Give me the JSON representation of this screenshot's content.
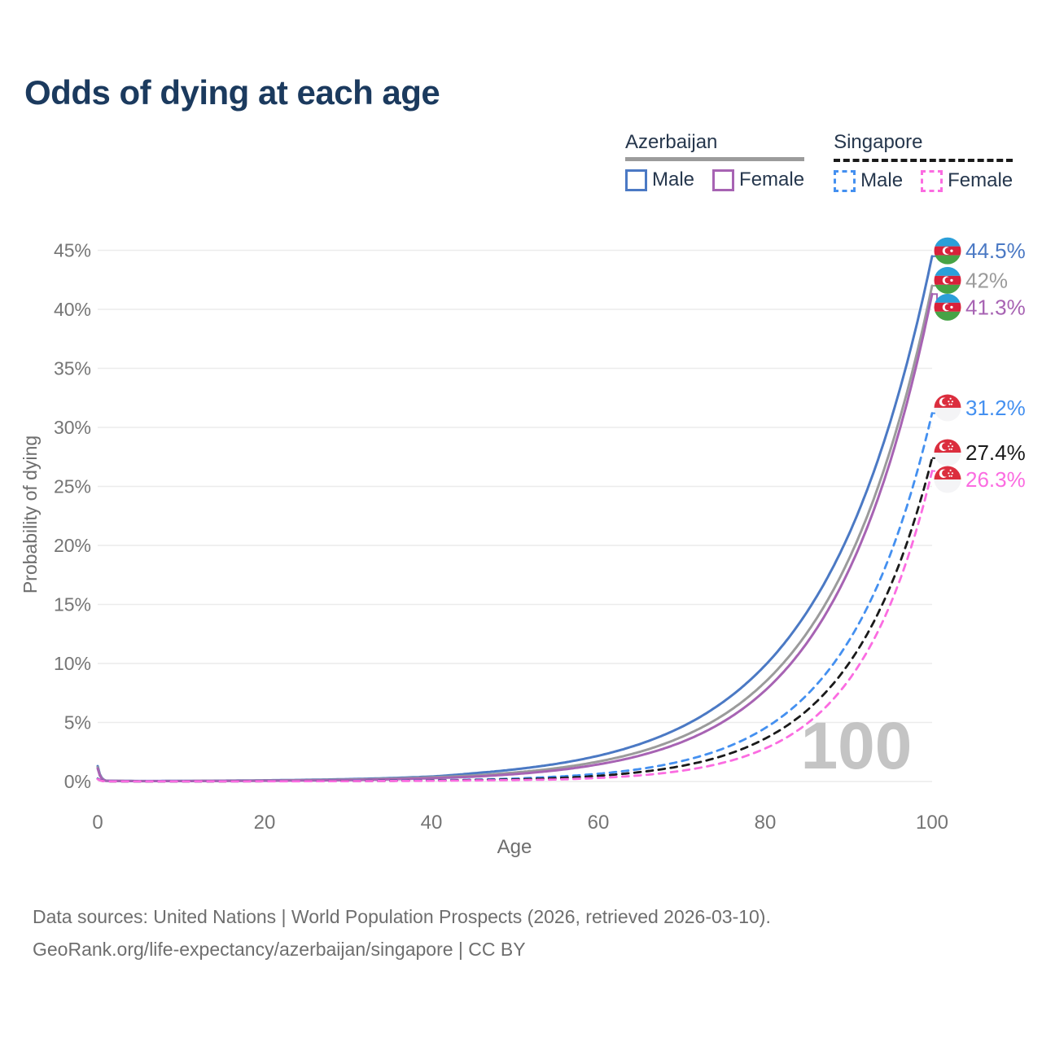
{
  "header": {
    "title": "Odds of dying at each age"
  },
  "legend": {
    "groups": [
      {
        "country": "Azerbaijan",
        "line_style": "solid",
        "color": "#9b9b9b",
        "items": [
          {
            "label": "Male",
            "color": "#4b79c4",
            "dash": false
          },
          {
            "label": "Female",
            "color": "#a763b3",
            "dash": false
          }
        ]
      },
      {
        "country": "Singapore",
        "line_style": "dashed",
        "color": "#1a1a1a",
        "items": [
          {
            "label": "Male",
            "color": "#4490f0",
            "dash": true
          },
          {
            "label": "Female",
            "color": "#fb6ce1",
            "dash": true
          }
        ]
      }
    ]
  },
  "chart_data": {
    "type": "line",
    "title": "Odds of dying at each age",
    "xlabel": "Age",
    "ylabel": "Probability of dying",
    "xlim": [
      0,
      100
    ],
    "ylim": [
      0,
      45
    ],
    "x_ticks": [
      0,
      20,
      40,
      60,
      80,
      100
    ],
    "y_ticks": [
      0,
      5,
      10,
      15,
      20,
      25,
      30,
      35,
      40,
      45
    ],
    "y_tick_suffix": "%",
    "grid": "horizontal",
    "hover_age_label": "100",
    "legend_position": "top-right",
    "ages": [
      0,
      1,
      5,
      10,
      20,
      30,
      40,
      45,
      50,
      55,
      60,
      65,
      70,
      75,
      80,
      85,
      90,
      95,
      100
    ],
    "series": [
      {
        "name": "Azerbaijan Male",
        "country": "Azerbaijan",
        "sex": "Male",
        "color": "#4b79c4",
        "dash": false,
        "end_label": "44.5%",
        "end_value": 44.5,
        "values": [
          1.3,
          0.07,
          0.04,
          0.05,
          0.1,
          0.2,
          0.42,
          0.7,
          1.03,
          1.5,
          2.18,
          3.18,
          4.63,
          6.76,
          9.85,
          14.36,
          20.9,
          30.5,
          44.5
        ]
      },
      {
        "name": "Azerbaijan Both sexes",
        "country": "Azerbaijan",
        "sex": "Both sexes",
        "color": "#9b9b9b",
        "dash": false,
        "end_label": "42%",
        "end_value": 42,
        "values": [
          1.2,
          0.06,
          0.035,
          0.04,
          0.08,
          0.16,
          0.35,
          0.51,
          0.76,
          1.13,
          1.69,
          2.52,
          3.78,
          5.64,
          8.43,
          12.59,
          18.8,
          28.1,
          42.0
        ]
      },
      {
        "name": "Azerbaijan Female",
        "country": "Azerbaijan",
        "sex": "Female",
        "color": "#a763b3",
        "dash": false,
        "end_label": "41.3%",
        "end_value": 41.3,
        "values": [
          1.1,
          0.05,
          0.03,
          0.035,
          0.06,
          0.12,
          0.28,
          0.41,
          0.63,
          0.95,
          1.45,
          2.2,
          3.34,
          5.08,
          7.72,
          11.75,
          17.87,
          27.16,
          41.3
        ]
      },
      {
        "name": "Singapore Male",
        "country": "Singapore",
        "sex": "Male",
        "color": "#4490f0",
        "dash": true,
        "end_label": "31.2%",
        "end_value": 31.2,
        "values": [
          0.25,
          0.02,
          0.012,
          0.012,
          0.03,
          0.05,
          0.1,
          0.155,
          0.25,
          0.41,
          0.66,
          1.06,
          1.73,
          2.8,
          4.53,
          7.34,
          11.89,
          19.26,
          31.2
        ]
      },
      {
        "name": "Singapore Both sexes",
        "country": "Singapore",
        "sex": "Both sexes",
        "color": "#1a1a1a",
        "dash": true,
        "end_label": "27.4%",
        "end_value": 27.4,
        "values": [
          0.22,
          0.018,
          0.01,
          0.01,
          0.025,
          0.04,
          0.08,
          0.12,
          0.175,
          0.29,
          0.48,
          0.8,
          1.32,
          2.19,
          3.64,
          6.02,
          9.98,
          16.54,
          27.4
        ]
      },
      {
        "name": "Singapore Female",
        "country": "Singapore",
        "sex": "Female",
        "color": "#fb6ce1",
        "dash": true,
        "end_label": "26.3%",
        "end_value": 26.3,
        "values": [
          0.2,
          0.015,
          0.009,
          0.009,
          0.02,
          0.03,
          0.06,
          0.09,
          0.12,
          0.17,
          0.3,
          0.52,
          0.91,
          1.6,
          2.8,
          4.9,
          8.58,
          15.02,
          26.3
        ]
      }
    ],
    "flags": {
      "Azerbaijan": {
        "blue": "#2b9fd9",
        "red": "#d8213a",
        "green": "#46a346",
        "emblem": "#ffffff"
      },
      "Singapore": {
        "red": "#db2e3e",
        "white": "#f4f4f6",
        "emblem": "#ffffff"
      }
    },
    "colors": {
      "grid": "#ececec",
      "tick_text": "#757575",
      "axis_title": "#6e6e6e",
      "watermark": "#c4c4c4"
    }
  },
  "footer": {
    "line1": "Data sources: United Nations | World Population Prospects (2026, retrieved 2026-03-10).",
    "line2": "GeoRank.org/life-expectancy/azerbaijan/singapore | CC BY"
  }
}
